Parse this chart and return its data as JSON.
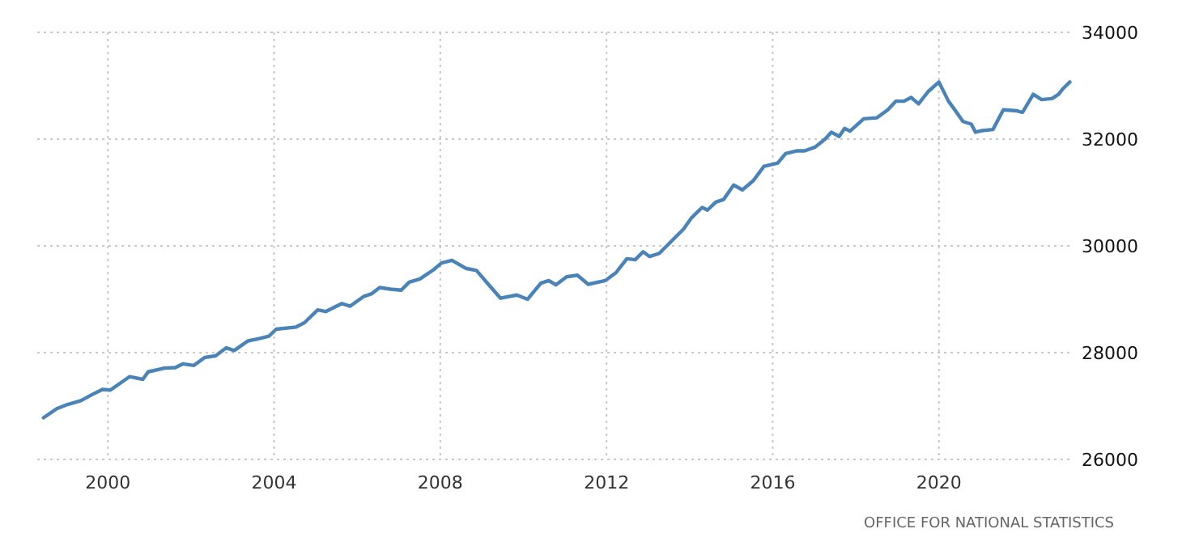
{
  "chart_data": {
    "type": "line",
    "x": [
      1998.45,
      1998.77,
      1999.03,
      1999.35,
      1999.61,
      1999.87,
      2000.06,
      2000.52,
      2000.84,
      2000.97,
      2001.36,
      2001.62,
      2001.81,
      2002.07,
      2002.33,
      2002.59,
      2002.85,
      2003.04,
      2003.37,
      2003.62,
      2003.88,
      2004.05,
      2004.53,
      2004.73,
      2005.05,
      2005.24,
      2005.63,
      2005.83,
      2006.15,
      2006.34,
      2006.54,
      2006.8,
      2007.06,
      2007.25,
      2007.51,
      2007.83,
      2008.03,
      2008.28,
      2008.61,
      2008.87,
      2009.19,
      2009.45,
      2009.84,
      2010.1,
      2010.42,
      2010.61,
      2010.78,
      2011.04,
      2011.3,
      2011.56,
      2011.97,
      2012.23,
      2012.49,
      2012.69,
      2012.88,
      2013.04,
      2013.27,
      2013.59,
      2013.85,
      2014.04,
      2014.3,
      2014.43,
      2014.63,
      2014.82,
      2015.06,
      2015.27,
      2015.53,
      2015.79,
      2016.12,
      2016.31,
      2016.57,
      2016.77,
      2017.02,
      2017.26,
      2017.41,
      2017.6,
      2017.73,
      2017.86,
      2018.19,
      2018.51,
      2018.77,
      2018.96,
      2019.16,
      2019.33,
      2019.51,
      2019.74,
      2020.0,
      2020.23,
      2020.39,
      2020.58,
      2020.78,
      2020.88,
      2021.04,
      2021.3,
      2021.55,
      2021.88,
      2022.01,
      2022.27,
      2022.47,
      2022.72,
      2022.88,
      2022.98,
      2023.15
    ],
    "series": [
      {
        "color": "#4a83b8",
        "values": [
          26780,
          26950,
          27030,
          27100,
          27210,
          27310,
          27300,
          27550,
          27500,
          27640,
          27710,
          27720,
          27790,
          27760,
          27910,
          27940,
          28090,
          28040,
          28220,
          28260,
          28310,
          28440,
          28480,
          28560,
          28800,
          28770,
          28920,
          28870,
          29050,
          29100,
          29220,
          29190,
          29170,
          29320,
          29380,
          29550,
          29680,
          29730,
          29580,
          29540,
          29250,
          29020,
          29080,
          29000,
          29300,
          29350,
          29270,
          29420,
          29450,
          29280,
          29350,
          29500,
          29760,
          29740,
          29890,
          29800,
          29860,
          30110,
          30310,
          30520,
          30720,
          30670,
          30820,
          30870,
          31140,
          31050,
          31220,
          31490,
          31550,
          31730,
          31780,
          31780,
          31850,
          32000,
          32130,
          32050,
          32200,
          32150,
          32380,
          32400,
          32550,
          32710,
          32710,
          32780,
          32660,
          32890,
          33070,
          32710,
          32540,
          32330,
          32280,
          32130,
          32160,
          32180,
          32550,
          32530,
          32500,
          32840,
          32740,
          32760,
          32840,
          32940,
          33070
        ]
      }
    ],
    "xlim": [
      1998.3,
      2023.2
    ],
    "ylim": [
      26000,
      34000
    ],
    "xticks": [
      2000,
      2004,
      2008,
      2012,
      2016,
      2020
    ],
    "yticks": [
      26000,
      28000,
      30000,
      32000,
      34000
    ],
    "grid": true,
    "line_style": "solid",
    "marker": "none",
    "annotations": [
      "OFFICE FOR NATIONAL STATISTICS"
    ]
  }
}
